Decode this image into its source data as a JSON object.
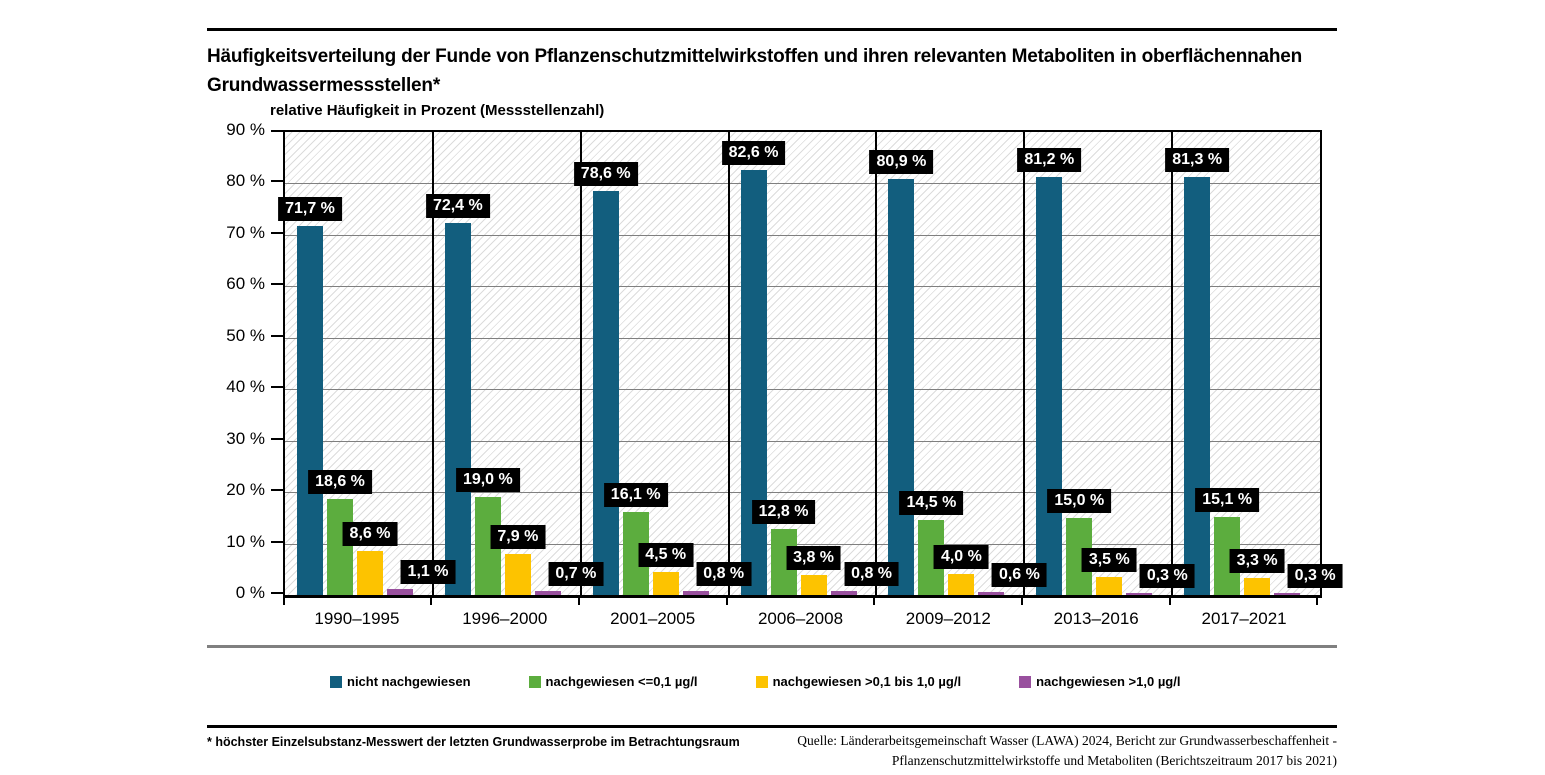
{
  "chart_data": {
    "type": "bar",
    "title": "Häufigkeitsverteilung der Funde von Pflanzenschutzmittelwirkstoffen und ihren relevanten Metaboliten in oberflächennahen Grundwassermessstellen*",
    "axis_caption": "relative Häufigkeit in Prozent (Messstellenzahl)",
    "xlabel": "",
    "ylabel": "relative Häufigkeit in Prozent (Messstellenzahl)",
    "ylim": [
      0,
      90
    ],
    "ytick_step": 10,
    "ytick_labels": [
      "0 %",
      "10 %",
      "20 %",
      "30 %",
      "40 %",
      "50 %",
      "60 %",
      "70 %",
      "80 %",
      "90 %"
    ],
    "grid": "horizontal",
    "legend_position": "bottom",
    "background_hatch": true,
    "categories": [
      "1990–1995",
      "1996–2000",
      "2001–2005",
      "2006–2008",
      "2009–2012",
      "2013–2016",
      "2017–2021"
    ],
    "series": [
      {
        "name": "nicht nachgewiesen",
        "color": "#125E7E",
        "values": [
          71.7,
          72.4,
          78.6,
          82.6,
          80.9,
          81.2,
          81.3
        ],
        "labels": [
          "71,7 %",
          "72,4 %",
          "78,6 %",
          "82,6 %",
          "80,9 %",
          "81,2 %",
          "81,3 %"
        ]
      },
      {
        "name": "nachgewiesen <=0,1 µg/l",
        "color": "#5CAD3E",
        "values": [
          18.6,
          19.0,
          16.1,
          12.8,
          14.5,
          15.0,
          15.1
        ],
        "labels": [
          "18,6 %",
          "19,0 %",
          "16,1 %",
          "12,8 %",
          "14,5 %",
          "15,0 %",
          "15,1 %"
        ]
      },
      {
        "name": "nachgewiesen >0,1 bis 1,0 µg/l",
        "color": "#FDC300",
        "values": [
          8.6,
          7.9,
          4.5,
          3.8,
          4.0,
          3.5,
          3.3
        ],
        "labels": [
          "8,6 %",
          "7,9 %",
          "4,5 %",
          "3,8 %",
          "4,0 %",
          "3,5 %",
          "3,3 %"
        ]
      },
      {
        "name": "nachgewiesen >1,0 µg/l",
        "color": "#99509E",
        "values": [
          1.1,
          0.7,
          0.8,
          0.8,
          0.6,
          0.3,
          0.3
        ],
        "labels": [
          "1,1 %",
          "0,7 %",
          "0,8 %",
          "0,8 %",
          "0,6 %",
          "0,3 %",
          "0,3 %"
        ]
      }
    ]
  },
  "footer": {
    "footnote": "* höchster Einzelsubstanz-Messwert der letzten Grundwasserprobe im Betrachtungsraum",
    "source_line1": "Quelle: Länderarbeitsgemeinschaft Wasser (LAWA) 2024, Bericht zur Grundwasserbeschaffenheit -",
    "source_line2": "Pflanzenschutzmittelwirkstoffe und Metaboliten (Berichtszeitraum 2017 bis 2021)"
  }
}
